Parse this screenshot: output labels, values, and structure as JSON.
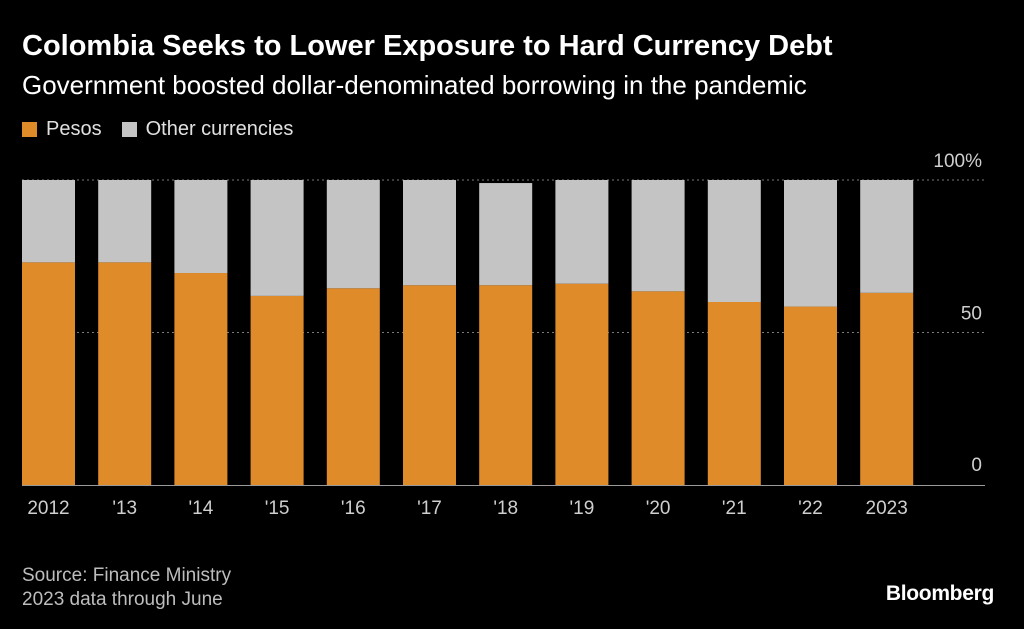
{
  "header": {
    "title": "Colombia Seeks to Lower Exposure to Hard Currency Debt",
    "subtitle": "Government boosted dollar-denominated borrowing in the pandemic"
  },
  "legend": {
    "items": [
      {
        "label": "Pesos",
        "color": "#e08b2a"
      },
      {
        "label": "Other currencies",
        "color": "#c4c4c4"
      }
    ]
  },
  "footer": {
    "source": "Source: Finance Ministry",
    "note": "2023 data through June",
    "brand": "Bloomberg"
  },
  "chart_data": {
    "type": "bar",
    "stacked": true,
    "categories": [
      "2012",
      "'13",
      "'14",
      "'15",
      "'16",
      "'17",
      "'18",
      "'19",
      "'20",
      "'21",
      "'22",
      "2023"
    ],
    "series": [
      {
        "name": "Pesos",
        "color": "#e08b2a",
        "values": [
          73,
          73,
          69.5,
          62,
          64.5,
          65.5,
          65.5,
          66,
          63.5,
          60,
          58.5,
          63
        ]
      },
      {
        "name": "Other currencies",
        "color": "#c4c4c4",
        "values": [
          27,
          27,
          30.5,
          38,
          35.5,
          34.5,
          33.5,
          34,
          36.5,
          40,
          41.5,
          37
        ]
      }
    ],
    "y_ticks": [
      {
        "value": 0,
        "label": "0"
      },
      {
        "value": 50,
        "label": "50"
      },
      {
        "value": 100,
        "label": "100%"
      }
    ],
    "ylim": [
      0,
      100
    ],
    "xlabel": "",
    "ylabel": "",
    "grid": true,
    "legend_position": "top-left"
  }
}
